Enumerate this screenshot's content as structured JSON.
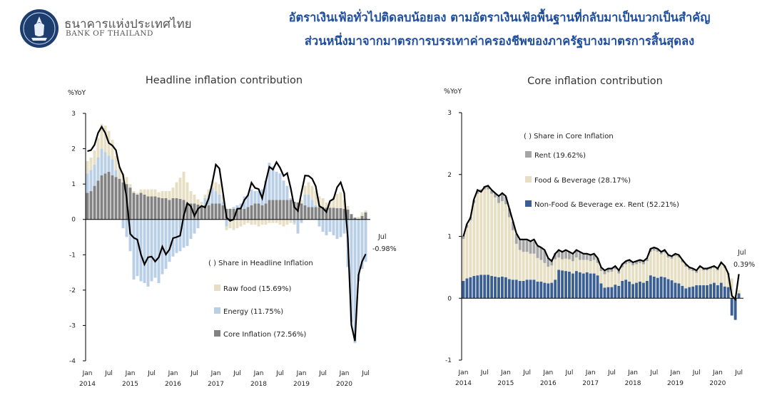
{
  "header": {
    "bot_name_th": "ธนาคารแห่งประเทศไทย",
    "bot_name_en": "BANK OF THAILAND",
    "headline_line1": "อัตราเงินเฟ้อทั่วไปติดลบน้อยลง ตามอัตราเงินเฟ้อพื้นฐานที่กลับมาเป็นบวกเป็นสำคัญ",
    "headline_line2": "ส่วนหนึ่งมาจากมาตรการบรรเทาค่าครองชีพของภาครัฐบางมาตรการสิ้นสุดลง"
  },
  "colors": {
    "raw_food": "#e6dfc3",
    "energy": "#b9cfe6",
    "core": "#828282",
    "rent": "#a5a5a5",
    "food_bev": "#e6dfc3",
    "nonfood": "#3b5f93",
    "line": "#000000"
  },
  "chart_data": [
    {
      "type": "bar",
      "title": "Headline inflation contribution",
      "ylabel": "%YoY",
      "ylim": [
        -4,
        3
      ],
      "yticks": [
        "3",
        "2",
        "1",
        "0",
        "-1",
        "-2",
        "-3",
        "-4"
      ],
      "x_month_labels": [
        "Jan",
        "Jul",
        "Jan",
        "Jul",
        "Jan",
        "Jul",
        "Jan",
        "Jul",
        "Jan",
        "Jul",
        "Jan",
        "Jul",
        "Jan",
        "Jul"
      ],
      "x_year_labels": [
        "2014",
        "2015",
        "2016",
        "2017",
        "2018",
        "2019",
        "2020"
      ],
      "legend_title": "( ) Share in Headline Inflation",
      "legend": [
        "Raw food (15.69%)",
        "Energy (11.75%)",
        "Core Inflation (72.56%)"
      ],
      "annotation_month": "Jul",
      "annotation_value": "-0.98%",
      "headline_line": [
        1.93,
        1.96,
        2.11,
        2.45,
        2.62,
        2.45,
        2.16,
        2.09,
        1.96,
        1.48,
        1.26,
        0.6,
        -0.41,
        -0.52,
        -0.57,
        -0.99,
        -1.27,
        -1.07,
        -1.05,
        -1.19,
        -1.07,
        -0.77,
        -0.99,
        -0.85,
        -0.53,
        -0.5,
        -0.46,
        0.1,
        0.46,
        0.37,
        0.1,
        0.3,
        0.38,
        0.34,
        0.6,
        1.03,
        1.55,
        1.44,
        0.76,
        0.05,
        -0.04,
        0.0,
        0.3,
        0.31,
        0.55,
        0.68,
        1.04,
        0.89,
        0.86,
        0.6,
        1.07,
        1.49,
        1.41,
        1.62,
        1.46,
        1.23,
        1.31,
        0.88,
        0.35,
        0.24,
        0.76,
        1.24,
        1.23,
        1.15,
        0.94,
        0.38,
        0.32,
        0.21,
        0.52,
        0.58,
        0.91,
        1.05,
        0.74,
        -0.54,
        -2.99,
        -3.44,
        -1.57,
        -1.19,
        -0.98
      ],
      "raw_food": [
        0.35,
        0.35,
        0.4,
        0.55,
        0.7,
        0.75,
        0.7,
        0.55,
        0.4,
        0.35,
        0.25,
        0.2,
        0.1,
        0.05,
        0.05,
        0.1,
        0.15,
        0.2,
        0.2,
        0.2,
        0.15,
        0.2,
        0.2,
        0.25,
        0.3,
        0.45,
        0.6,
        0.8,
        0.6,
        0.35,
        0.25,
        0.15,
        0.1,
        0.1,
        0.15,
        0.2,
        0.25,
        0.3,
        0.2,
        -0.1,
        -0.2,
        -0.3,
        -0.25,
        -0.2,
        -0.15,
        -0.1,
        -0.15,
        -0.15,
        -0.2,
        -0.15,
        -0.15,
        -0.1,
        -0.1,
        -0.1,
        -0.15,
        -0.2,
        -0.15,
        -0.1,
        -0.05,
        0.0,
        0.1,
        0.25,
        0.35,
        0.4,
        0.4,
        0.3,
        0.25,
        0.15,
        0.2,
        0.3,
        0.4,
        0.45,
        0.25,
        0.1,
        0.0,
        0.0,
        0.05,
        0.1,
        0.05
      ],
      "energy": [
        0.55,
        0.6,
        0.6,
        0.65,
        0.75,
        0.6,
        0.45,
        0.45,
        0.2,
        0.0,
        -0.25,
        -0.5,
        -0.9,
        -1.7,
        -1.6,
        -1.75,
        -1.8,
        -1.9,
        -1.75,
        -1.65,
        -1.8,
        -1.55,
        -1.4,
        -1.2,
        -1.05,
        -0.95,
        -0.9,
        -0.8,
        -0.75,
        -0.55,
        -0.4,
        -0.25,
        0.0,
        0.2,
        0.3,
        0.45,
        0.35,
        0.25,
        0.1,
        -0.2,
        -0.05,
        0.05,
        0.1,
        0.15,
        0.35,
        0.35,
        0.45,
        0.35,
        0.35,
        0.45,
        0.65,
        1.05,
        0.95,
        0.8,
        0.75,
        0.55,
        0.4,
        0.05,
        -0.1,
        -0.4,
        -0.1,
        0.3,
        0.35,
        0.2,
        0.05,
        -0.2,
        -0.35,
        -0.45,
        -0.35,
        -0.45,
        -0.55,
        -0.5,
        -0.4,
        -1.35,
        -2.9,
        -3.5,
        -1.75,
        -1.4,
        -1.2
      ],
      "core": [
        0.75,
        0.8,
        0.95,
        1.1,
        1.25,
        1.3,
        1.35,
        1.25,
        1.2,
        1.15,
        1.05,
        1.0,
        0.9,
        0.75,
        0.7,
        0.75,
        0.7,
        0.65,
        0.65,
        0.65,
        0.62,
        0.6,
        0.6,
        0.55,
        0.6,
        0.6,
        0.58,
        0.55,
        0.45,
        0.45,
        0.45,
        0.42,
        0.4,
        0.4,
        0.4,
        0.45,
        0.45,
        0.45,
        0.4,
        0.3,
        0.3,
        0.3,
        0.3,
        0.3,
        0.3,
        0.35,
        0.4,
        0.45,
        0.45,
        0.4,
        0.45,
        0.55,
        0.55,
        0.55,
        0.55,
        0.55,
        0.55,
        0.55,
        0.5,
        0.48,
        0.45,
        0.4,
        0.35,
        0.35,
        0.35,
        0.35,
        0.35,
        0.33,
        0.33,
        0.33,
        0.32,
        0.32,
        0.3,
        0.28,
        0.15,
        0.05,
        0.02,
        0.1,
        0.2
      ]
    },
    {
      "type": "bar",
      "title": "Core inflation contribution",
      "ylabel": "%YoY",
      "ylim": [
        -1,
        3
      ],
      "yticks": [
        "3",
        "2",
        "1",
        "0",
        "-1"
      ],
      "x_month_labels": [
        "Jan",
        "Jul",
        "Jan",
        "Jul",
        "Jan",
        "Jul",
        "Jan",
        "Jul",
        "Jan",
        "Jul",
        "Jan",
        "Jul",
        "Jan",
        "Jul"
      ],
      "x_year_labels": [
        "2014",
        "2015",
        "2016",
        "2017",
        "2018",
        "2019",
        "2020"
      ],
      "legend_title": "( ) Share in Core Inflation",
      "legend": [
        "Rent (19.62%)",
        "Food & Beverage (28.17%)",
        "Non-Food & Beverage ex. Rent (52.21%)"
      ],
      "annotation_month": "Jul",
      "annotation_value": "0.39%",
      "core_line": [
        1.0,
        1.2,
        1.3,
        1.6,
        1.75,
        1.72,
        1.8,
        1.82,
        1.75,
        1.7,
        1.65,
        1.7,
        1.65,
        1.45,
        1.25,
        1.05,
        0.95,
        0.95,
        0.95,
        0.92,
        0.95,
        0.85,
        0.82,
        0.78,
        0.65,
        0.6,
        0.72,
        0.78,
        0.75,
        0.78,
        0.75,
        0.72,
        0.78,
        0.75,
        0.72,
        0.72,
        0.7,
        0.72,
        0.65,
        0.5,
        0.45,
        0.48,
        0.48,
        0.52,
        0.45,
        0.55,
        0.6,
        0.62,
        0.58,
        0.6,
        0.62,
        0.6,
        0.65,
        0.8,
        0.82,
        0.8,
        0.75,
        0.78,
        0.7,
        0.68,
        0.72,
        0.7,
        0.62,
        0.55,
        0.5,
        0.48,
        0.45,
        0.52,
        0.48,
        0.48,
        0.5,
        0.52,
        0.48,
        0.58,
        0.52,
        0.4,
        0.04,
        -0.02,
        0.39
      ],
      "rent": [
        0.05,
        0.05,
        0.05,
        0.05,
        0.05,
        0.05,
        0.05,
        0.05,
        0.05,
        0.06,
        0.1,
        0.12,
        0.12,
        0.14,
        0.14,
        0.16,
        0.18,
        0.2,
        0.2,
        0.2,
        0.2,
        0.2,
        0.2,
        0.2,
        0.14,
        0.1,
        0.1,
        0.12,
        0.12,
        0.12,
        0.12,
        0.12,
        0.12,
        0.12,
        0.1,
        0.1,
        0.1,
        0.1,
        0.08,
        0.06,
        0.06,
        0.05,
        0.05,
        0.05,
        0.05,
        0.05,
        0.05,
        0.05,
        0.05,
        0.05,
        0.05,
        0.05,
        0.05,
        0.05,
        0.05,
        0.05,
        0.04,
        0.04,
        0.04,
        0.04,
        0.04,
        0.04,
        0.04,
        0.04,
        0.04,
        0.04,
        0.04,
        0.03,
        0.03,
        0.03,
        0.03,
        0.03,
        0.03,
        0.03,
        0.03,
        0.02,
        0.0,
        0.0,
        0.0
      ],
      "food_bev": [
        0.68,
        0.82,
        0.92,
        1.18,
        1.32,
        1.33,
        1.38,
        1.38,
        1.33,
        1.28,
        1.2,
        1.22,
        1.18,
        1.0,
        0.8,
        0.58,
        0.5,
        0.47,
        0.45,
        0.42,
        0.42,
        0.38,
        0.35,
        0.32,
        0.27,
        0.28,
        0.33,
        0.2,
        0.18,
        0.2,
        0.2,
        0.2,
        0.22,
        0.2,
        0.22,
        0.2,
        0.2,
        0.22,
        0.2,
        0.2,
        0.22,
        0.24,
        0.25,
        0.25,
        0.2,
        0.22,
        0.25,
        0.3,
        0.3,
        0.3,
        0.3,
        0.3,
        0.32,
        0.38,
        0.42,
        0.42,
        0.36,
        0.4,
        0.35,
        0.35,
        0.43,
        0.42,
        0.38,
        0.35,
        0.28,
        0.25,
        0.2,
        0.28,
        0.24,
        0.24,
        0.24,
        0.24,
        0.24,
        0.3,
        0.3,
        0.2,
        0.32,
        0.05,
        0.05
      ],
      "nonfood": [
        0.28,
        0.32,
        0.34,
        0.36,
        0.37,
        0.38,
        0.38,
        0.38,
        0.36,
        0.35,
        0.34,
        0.35,
        0.34,
        0.31,
        0.3,
        0.3,
        0.28,
        0.28,
        0.3,
        0.3,
        0.3,
        0.27,
        0.27,
        0.25,
        0.24,
        0.25,
        0.3,
        0.46,
        0.45,
        0.44,
        0.43,
        0.4,
        0.44,
        0.42,
        0.4,
        0.42,
        0.4,
        0.4,
        0.37,
        0.24,
        0.17,
        0.18,
        0.18,
        0.22,
        0.2,
        0.28,
        0.3,
        0.27,
        0.23,
        0.25,
        0.27,
        0.25,
        0.28,
        0.37,
        0.35,
        0.33,
        0.35,
        0.34,
        0.31,
        0.29,
        0.25,
        0.24,
        0.2,
        0.16,
        0.18,
        0.19,
        0.21,
        0.21,
        0.21,
        0.21,
        0.23,
        0.25,
        0.21,
        0.25,
        0.19,
        0.18,
        -0.28,
        -0.35,
        0.08
      ]
    }
  ]
}
